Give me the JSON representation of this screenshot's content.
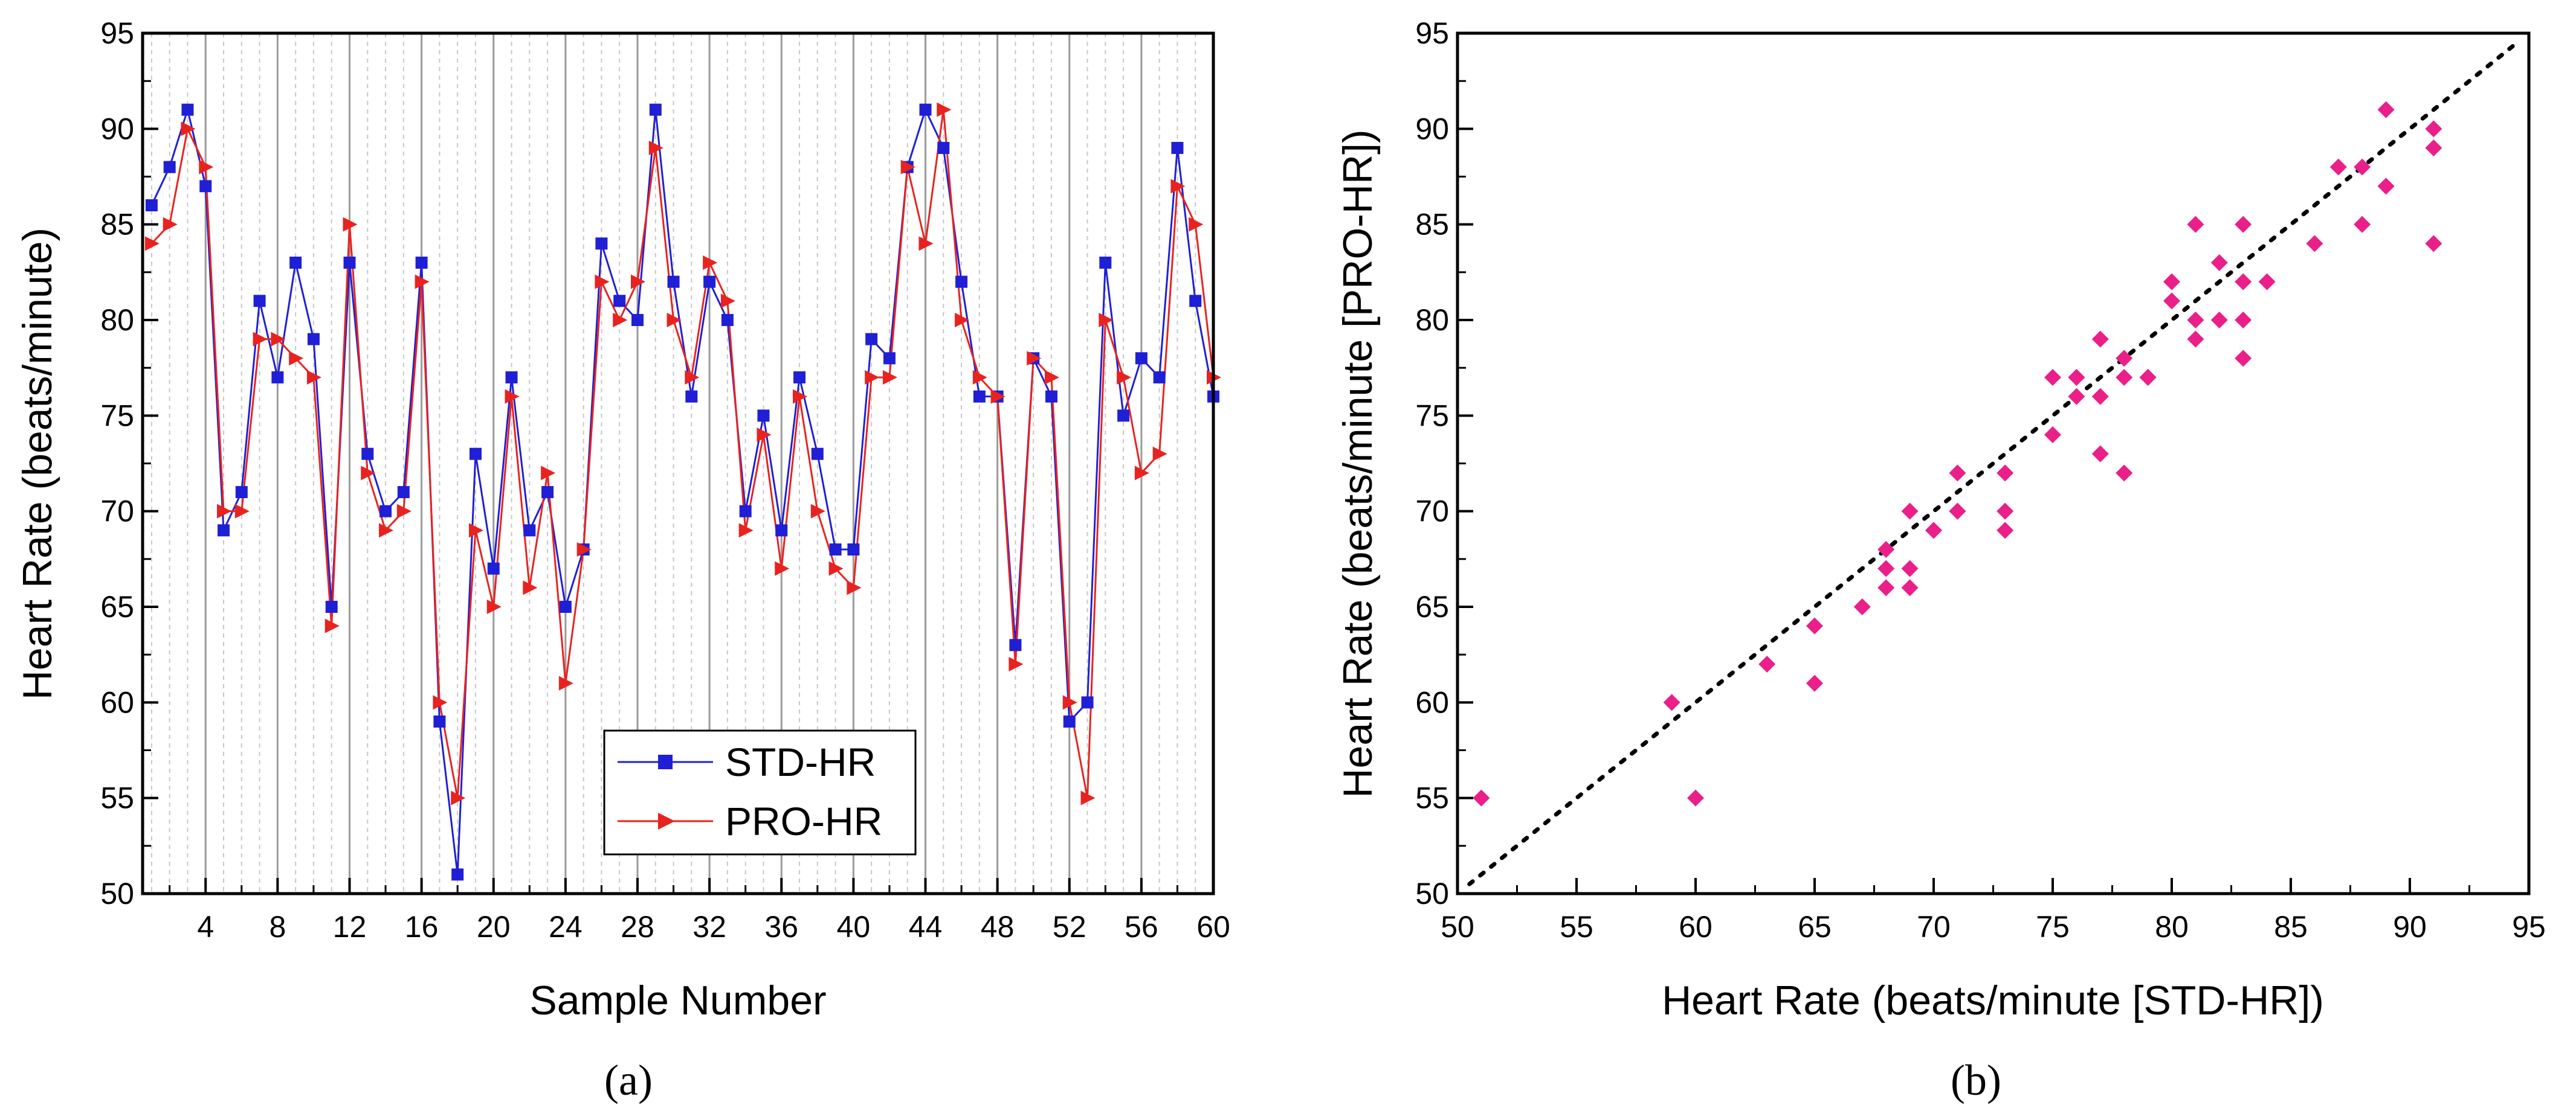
{
  "colors": {
    "std": "#1f1fd6",
    "pro": "#e8231f",
    "scatter": "#ea1f8a",
    "grid": "#9a9a9a",
    "axis": "#000000"
  },
  "chart_data": [
    {
      "type": "line",
      "panel_label": "(a)",
      "xlabel": "Sample Number",
      "ylabel": "Heart Rate (beats/minute)",
      "xlim": [
        0.5,
        60
      ],
      "ylim": [
        50,
        95
      ],
      "x_ticks": [
        "4",
        "8",
        "12",
        "16",
        "20",
        "24",
        "28",
        "32",
        "36",
        "40",
        "44",
        "48",
        "52",
        "56",
        "60"
      ],
      "y_ticks": [
        "50",
        "55",
        "60",
        "65",
        "70",
        "75",
        "80",
        "85",
        "90",
        "95"
      ],
      "grid": "vertical",
      "legend_position": "bottom-center",
      "series": [
        {
          "name": "STD-HR",
          "marker": "square",
          "values": [
            86,
            88,
            91,
            87,
            69,
            71,
            81,
            77,
            83,
            79,
            65,
            83,
            73,
            70,
            71,
            83,
            59,
            51,
            73,
            67,
            77,
            69,
            71,
            65,
            68,
            84,
            81,
            80,
            91,
            82,
            76,
            82,
            80,
            70,
            75,
            69,
            77,
            73,
            68,
            68,
            79,
            78,
            88,
            91,
            89,
            82,
            76,
            76,
            63,
            78,
            76,
            59,
            60,
            83,
            75,
            78,
            77,
            89,
            81,
            76
          ]
        },
        {
          "name": "PRO-HR",
          "marker": "triangle-right",
          "values": [
            84,
            85,
            90,
            88,
            70,
            70,
            79,
            79,
            78,
            77,
            64,
            85,
            72,
            69,
            70,
            82,
            60,
            55,
            69,
            65,
            76,
            66,
            72,
            61,
            68,
            82,
            80,
            82,
            89,
            80,
            77,
            83,
            81,
            69,
            74,
            67,
            76,
            70,
            67,
            66,
            77,
            77,
            88,
            84,
            91,
            80,
            77,
            76,
            62,
            78,
            77,
            60,
            55,
            80,
            77,
            72,
            73,
            87,
            85,
            77
          ]
        }
      ]
    },
    {
      "type": "scatter",
      "panel_label": "(b)",
      "xlabel": "Heart Rate (beats/minute [STD-HR])",
      "ylabel": "Heart Rate (beats/minute [PRO-HR])",
      "xlim": [
        50,
        95
      ],
      "ylim": [
        50,
        95
      ],
      "x_ticks": [
        "50",
        "55",
        "60",
        "65",
        "70",
        "75",
        "80",
        "85",
        "90",
        "95"
      ],
      "y_ticks": [
        "50",
        "55",
        "60",
        "65",
        "70",
        "75",
        "80",
        "85",
        "90",
        "95"
      ],
      "reference_line": "y = x (dotted)",
      "points": [
        [
          51,
          55
        ],
        [
          59,
          60
        ],
        [
          60,
          55
        ],
        [
          63,
          62
        ],
        [
          65,
          64
        ],
        [
          65,
          61
        ],
        [
          67,
          65
        ],
        [
          68,
          68
        ],
        [
          68,
          67
        ],
        [
          68,
          66
        ],
        [
          69,
          70
        ],
        [
          69,
          67
        ],
        [
          69,
          66
        ],
        [
          70,
          69
        ],
        [
          70,
          69
        ],
        [
          71,
          72
        ],
        [
          71,
          70
        ],
        [
          71,
          70
        ],
        [
          73,
          72
        ],
        [
          73,
          70
        ],
        [
          73,
          69
        ],
        [
          75,
          77
        ],
        [
          75,
          74
        ],
        [
          76,
          77
        ],
        [
          76,
          76
        ],
        [
          76,
          77
        ],
        [
          77,
          79
        ],
        [
          77,
          76
        ],
        [
          77,
          73
        ],
        [
          78,
          78
        ],
        [
          78,
          77
        ],
        [
          78,
          72
        ],
        [
          79,
          77
        ],
        [
          79,
          77
        ],
        [
          80,
          82
        ],
        [
          80,
          81
        ],
        [
          81,
          80
        ],
        [
          81,
          79
        ],
        [
          81,
          85
        ],
        [
          82,
          83
        ],
        [
          82,
          80
        ],
        [
          83,
          82
        ],
        [
          83,
          80
        ],
        [
          83,
          78
        ],
        [
          83,
          85
        ],
        [
          84,
          82
        ],
        [
          86,
          84
        ],
        [
          87,
          88
        ],
        [
          88,
          88
        ],
        [
          88,
          85
        ],
        [
          89,
          91
        ],
        [
          89,
          87
        ],
        [
          91,
          90
        ],
        [
          91,
          89
        ],
        [
          91,
          84
        ]
      ]
    }
  ]
}
